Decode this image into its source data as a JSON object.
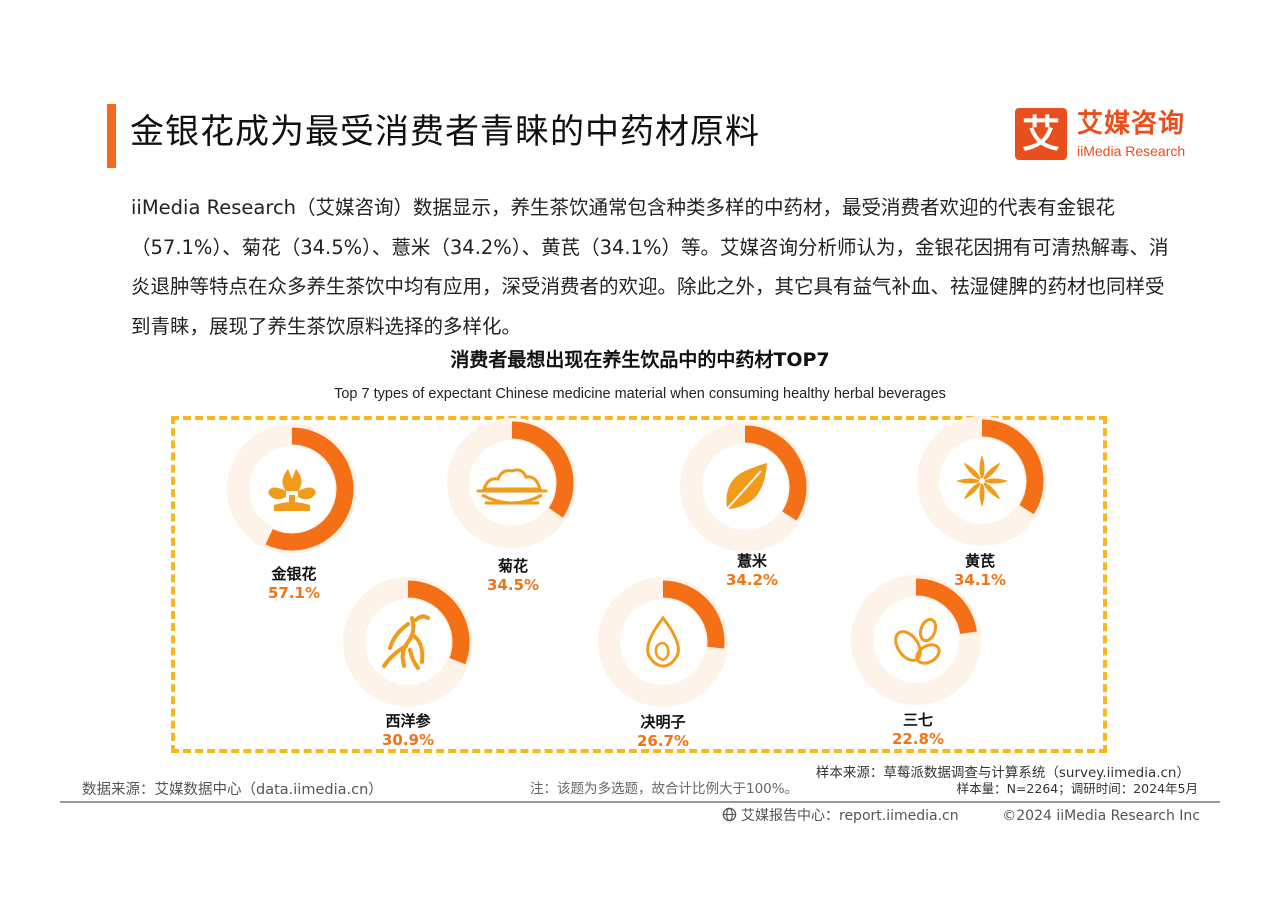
{
  "page": {
    "title": "金银花成为最受消费者青睐的中药材原料",
    "paragraph": "iiMedia Research（艾媒咨询）数据显示，养生茶饮通常包含种类多样的中药材，最受消费者欢迎的代表有金银花（57.1%）、菊花（34.5%）、薏米（34.2%）、黄芪（34.1%）等。艾媒咨询分析师认为，金银花因拥有可清热解毒、消炎退肿等特点在众多养生茶饮中均有应用，深受消费者的欢迎。除此之外，其它具有益气补血、祛湿健脾的药材也同样受到青睐，展现了养生茶饮原料选择的多样化。"
  },
  "logo": {
    "icon_text": "艾",
    "cn": "艾媒咨询",
    "en": "iiMedia Research"
  },
  "chart_data": {
    "type": "ring-progress",
    "title": "消费者最想出现在养生饮品中的中药材TOP7",
    "subtitle": "Top 7 types of expectant Chinese medicine material when consuming healthy herbal beverages",
    "unit": "%",
    "items": [
      {
        "name": "金银花",
        "value": 57.1,
        "label": "57.1%",
        "icon": "honeysuckle-flower-icon"
      },
      {
        "name": "菊花",
        "value": 34.5,
        "label": "34.5%",
        "icon": "chrysanthemum-bowl-icon"
      },
      {
        "name": "薏米",
        "value": 34.2,
        "label": "34.2%",
        "icon": "leaf-icon"
      },
      {
        "name": "黄芪",
        "value": 34.1,
        "label": "34.1%",
        "icon": "star-anise-icon"
      },
      {
        "name": "西洋参",
        "value": 30.9,
        "label": "30.9%",
        "icon": "ginseng-root-icon"
      },
      {
        "name": "决明子",
        "value": 26.7,
        "label": "26.7%",
        "icon": "water-drop-seed-icon"
      },
      {
        "name": "三七",
        "value": 22.8,
        "label": "22.8%",
        "icon": "seeds-icon"
      }
    ],
    "colors": {
      "ring": "#f46f16",
      "icon": "#f29a19",
      "halo": "#fdf3e9",
      "frame": "#f6b81c",
      "value_text": "#f07418"
    }
  },
  "footer": {
    "sample_source": "样本来源：草莓派数据调查与计算系统（survey.iimedia.cn）",
    "data_source": "数据来源：艾媒数据中心（data.iimedia.cn）",
    "note": "注：该题为多选题，故合计比例大于100%。",
    "sample_size": "样本量：N=2264；调研时间：2024年5月",
    "report_center": "艾媒报告中心：report.iimedia.cn",
    "copyright": "©2024  iiMedia Research  Inc"
  }
}
